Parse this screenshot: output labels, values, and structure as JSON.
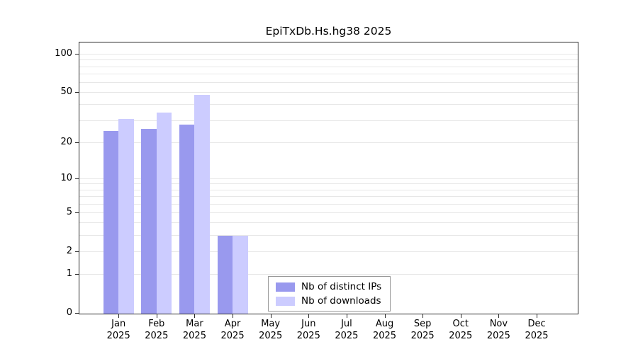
{
  "chart_data": {
    "type": "bar",
    "title": "EpiTxDb.Hs.hg38 2025",
    "categories": [
      "Jan",
      "Feb",
      "Mar",
      "Apr",
      "May",
      "Jun",
      "Jul",
      "Aug",
      "Sep",
      "Oct",
      "Nov",
      "Dec"
    ],
    "year": "2025",
    "series": [
      {
        "name": "Nb of distinct IPs",
        "color": "#9999ee",
        "values": [
          25,
          26,
          28,
          3,
          0,
          0,
          0,
          0,
          0,
          0,
          0,
          0
        ]
      },
      {
        "name": "Nb of downloads",
        "color": "#ccccff",
        "values": [
          31,
          35,
          48,
          3,
          0,
          0,
          0,
          0,
          0,
          0,
          0,
          0
        ]
      }
    ],
    "ylim": [
      0,
      100
    ],
    "yticks": [
      0,
      1,
      2,
      5,
      10,
      20,
      50,
      100
    ],
    "gridlines": [
      1,
      2,
      3,
      4,
      5,
      6,
      7,
      8,
      9,
      10,
      20,
      30,
      40,
      50,
      60,
      70,
      80,
      90,
      100
    ],
    "scale": "log1p",
    "xlabel": "",
    "ylabel": "",
    "grid": true,
    "legend_position": "bottom-center-inside"
  }
}
